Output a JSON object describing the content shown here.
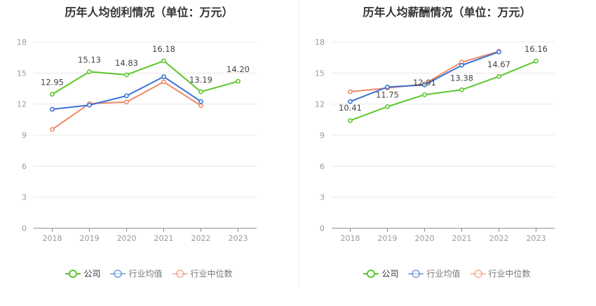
{
  "chart_data": [
    {
      "type": "line",
      "title": "历年人均创利情况（单位：万元）",
      "categories": [
        "2018",
        "2019",
        "2020",
        "2021",
        "2022",
        "2023"
      ],
      "y_ticks": [
        0,
        3,
        6,
        9,
        12,
        15,
        18
      ],
      "ylim": [
        0,
        18
      ],
      "grid": true,
      "legend_position": "bottom",
      "series": [
        {
          "name": "公司",
          "color": "#5bc72b",
          "values": [
            12.95,
            15.13,
            14.83,
            16.18,
            13.19,
            14.2
          ],
          "labels": [
            "12.95",
            "15.13",
            "14.83",
            "16.18",
            "13.19",
            "14.20"
          ]
        },
        {
          "name": "行业均值",
          "color": "#3b73d6",
          "values": [
            11.5,
            11.9,
            12.8,
            14.65,
            12.25,
            null
          ],
          "labels": null
        },
        {
          "name": "行业中位数",
          "color": "#ef8a65",
          "values": [
            9.55,
            12.05,
            12.2,
            14.15,
            11.85,
            null
          ],
          "labels": null
        }
      ]
    },
    {
      "type": "line",
      "title": "历年人均薪酬情况（单位：万元）",
      "categories": [
        "2018",
        "2019",
        "2020",
        "2021",
        "2022",
        "2023"
      ],
      "y_ticks": [
        0,
        3,
        6,
        9,
        12,
        15,
        18
      ],
      "ylim": [
        0,
        18
      ],
      "grid": true,
      "legend_position": "bottom",
      "series": [
        {
          "name": "公司",
          "color": "#5bc72b",
          "values": [
            10.41,
            11.75,
            12.91,
            13.38,
            14.67,
            16.16
          ],
          "labels": [
            "10.41",
            "11.75",
            "12.91",
            "13.38",
            "14.67",
            "16.16"
          ]
        },
        {
          "name": "行业均值",
          "color": "#3b73d6",
          "values": [
            12.25,
            13.65,
            13.85,
            15.75,
            17.05,
            null
          ],
          "labels": null
        },
        {
          "name": "行业中位数",
          "color": "#ef8a65",
          "values": [
            13.2,
            13.55,
            13.95,
            16.05,
            17.1,
            null
          ],
          "labels": null
        }
      ]
    }
  ]
}
